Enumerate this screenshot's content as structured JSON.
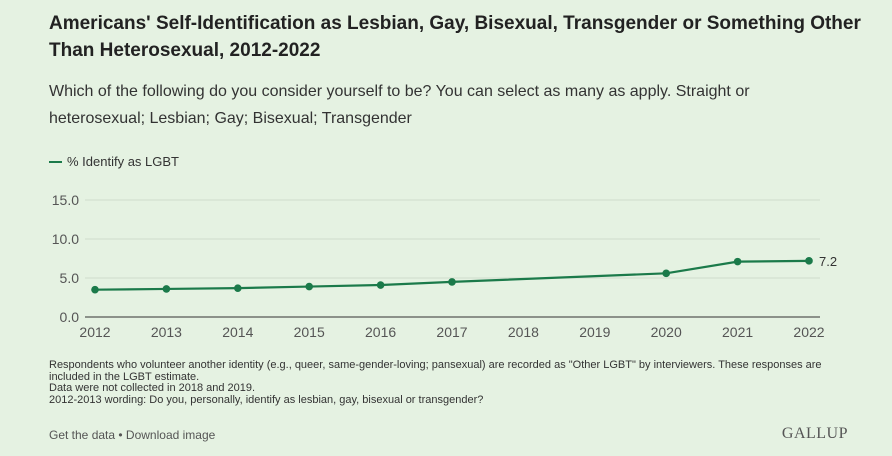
{
  "title": "Americans' Self-Identification as Lesbian, Gay, Bisexual, Transgender or Something Other Than Heterosexual, 2012-2022",
  "subtitle": "Which of the following do you consider yourself to be? You can select as many as apply. Straight or heterosexual; Lesbian; Gay; Bisexual; Transgender",
  "notes": [
    "Respondents who volunteer another identity (e.g., queer, same-gender-loving; pansexual) are recorded as \"Other LGBT\" by interviewers. These responses are included in the LGBT estimate.",
    "Data were not collected in 2018 and 2019.",
    "2012-2013 wording: Do you, personally, identify as lesbian, gay, bisexual or transgender?"
  ],
  "links": {
    "get_data": "Get the data",
    "separator": " • ",
    "download": "Download image"
  },
  "logo": "GALLUP",
  "chart_data": {
    "type": "line",
    "x_ticks": [
      "2012",
      "2013",
      "2014",
      "2015",
      "2016",
      "2017",
      "2018",
      "2019",
      "2020",
      "2021",
      "2022"
    ],
    "y_ticks": [
      "0.0",
      "5.0",
      "10.0",
      "15.0"
    ],
    "ylim": [
      0,
      15
    ],
    "grid": true,
    "legend": "top-left",
    "series": [
      {
        "name": "% Identify as LGBT",
        "color": "#1b7a4a",
        "x": [
          2012,
          2013,
          2014,
          2015,
          2016,
          2017,
          2020,
          2021,
          2022
        ],
        "y": [
          3.5,
          3.6,
          3.7,
          3.9,
          4.1,
          4.5,
          5.6,
          7.1,
          7.2
        ],
        "end_label": "7.2"
      }
    ]
  }
}
